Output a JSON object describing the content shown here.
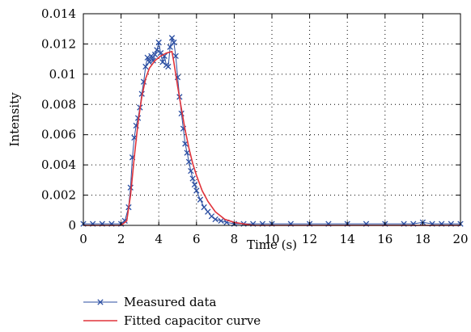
{
  "chart_data": {
    "type": "line",
    "xlabel": "Time (s)",
    "ylabel": "Intensity",
    "xlim": [
      0,
      20
    ],
    "ylim": [
      0,
      0.014
    ],
    "x_ticks": [
      0,
      2,
      4,
      6,
      8,
      10,
      12,
      14,
      16,
      18,
      20
    ],
    "y_ticks": [
      0,
      0.002,
      0.004,
      0.006,
      0.008,
      0.01,
      0.012,
      0.014
    ],
    "x_tick_labels": [
      "0",
      "2",
      "4",
      "6",
      "8",
      "10",
      "12",
      "14",
      "16",
      "18",
      "20"
    ],
    "y_tick_labels": [
      "0",
      "0.002",
      "0.004",
      "0.006",
      "0.008",
      "0.01",
      "0.012",
      "0.014"
    ],
    "grid": true,
    "legend_position": "bottom",
    "series": [
      {
        "name": "Measured data",
        "color": "#2b4ea2",
        "marker": "x",
        "x": [
          0.0,
          0.5,
          1.0,
          1.5,
          2.0,
          2.2,
          2.4,
          2.5,
          2.6,
          2.7,
          2.8,
          2.9,
          3.0,
          3.1,
          3.2,
          3.3,
          3.4,
          3.5,
          3.6,
          3.7,
          3.8,
          3.9,
          4.0,
          4.1,
          4.2,
          4.3,
          4.4,
          4.5,
          4.6,
          4.7,
          4.8,
          4.9,
          5.0,
          5.1,
          5.2,
          5.3,
          5.4,
          5.5,
          5.6,
          5.7,
          5.8,
          5.9,
          6.0,
          6.2,
          6.4,
          6.6,
          6.8,
          7.0,
          7.3,
          7.6,
          8.0,
          8.5,
          9.0,
          9.5,
          10.0,
          11.0,
          12.0,
          13.0,
          14.0,
          15.0,
          16.0,
          17.0,
          17.5,
          18.0,
          18.5,
          19.0,
          19.5,
          20.0
        ],
        "y": [
          0.0001,
          0.0001,
          0.0001,
          0.0001,
          0.0001,
          0.0003,
          0.0012,
          0.0025,
          0.0045,
          0.0058,
          0.0066,
          0.0071,
          0.0078,
          0.0087,
          0.0095,
          0.0105,
          0.0111,
          0.0108,
          0.0112,
          0.0109,
          0.0113,
          0.0116,
          0.0121,
          0.0114,
          0.0108,
          0.0112,
          0.0106,
          0.0105,
          0.0118,
          0.0124,
          0.0121,
          0.0112,
          0.0098,
          0.0085,
          0.0074,
          0.0064,
          0.0054,
          0.0048,
          0.0042,
          0.0036,
          0.0031,
          0.0027,
          0.0023,
          0.0017,
          0.0012,
          0.0009,
          0.0006,
          0.0004,
          0.0003,
          0.0002,
          0.0001,
          0.0001,
          0.0001,
          0.0001,
          0.0001,
          0.0001,
          0.0001,
          0.0001,
          0.0001,
          0.0001,
          0.0001,
          0.0001,
          0.0001,
          0.0002,
          0.0001,
          0.0001,
          0.0001,
          0.0001
        ]
      },
      {
        "name": "Fitted capacitor curve",
        "color": "#e0333a",
        "marker": "none",
        "x": [
          0.0,
          2.0,
          2.3,
          2.5,
          2.7,
          2.9,
          3.1,
          3.3,
          3.5,
          3.8,
          4.1,
          4.4,
          4.7,
          4.8,
          5.0,
          5.2,
          5.4,
          5.6,
          5.8,
          6.0,
          6.3,
          6.6,
          7.0,
          7.5,
          8.0,
          9.0,
          10.0,
          20.0
        ],
        "y": [
          0.0,
          0.0,
          0.0003,
          0.002,
          0.0045,
          0.0068,
          0.0085,
          0.0097,
          0.0104,
          0.0109,
          0.0112,
          0.0114,
          0.0115,
          0.0108,
          0.0092,
          0.0077,
          0.0063,
          0.0051,
          0.0041,
          0.0033,
          0.0023,
          0.0016,
          0.0009,
          0.0004,
          0.0002,
          0.0,
          0.0,
          0.0
        ]
      }
    ]
  }
}
